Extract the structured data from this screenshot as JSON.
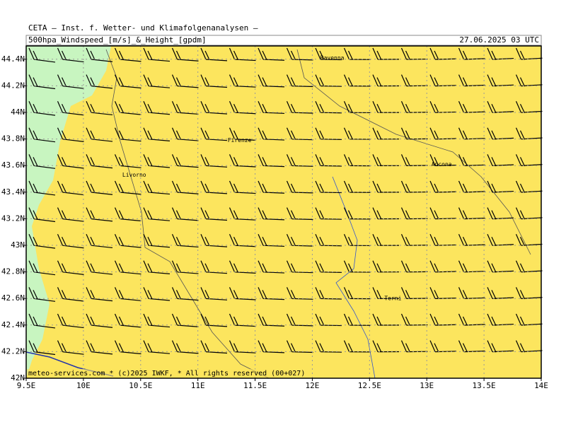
{
  "header": {
    "title": "CETA — Inst. f. Wetter- und Klimafolgenanalysen —",
    "product": "500hpa_Windspeed_[m/s]_&_Height_[gpdm]",
    "valid_time": "27.06.2025 03 UTC"
  },
  "map": {
    "xlim": [
      9.5,
      14
    ],
    "ylim": [
      42,
      44.5
    ],
    "xticks": [
      {
        "value": 9.5,
        "label": "9.5E"
      },
      {
        "value": 10,
        "label": "10E"
      },
      {
        "value": 10.5,
        "label": "10.5E"
      },
      {
        "value": 11,
        "label": "11E"
      },
      {
        "value": 11.5,
        "label": "11.5E"
      },
      {
        "value": 12,
        "label": "12E"
      },
      {
        "value": 12.5,
        "label": "12.5E"
      },
      {
        "value": 13,
        "label": "13E"
      },
      {
        "value": 13.5,
        "label": "13.5E"
      },
      {
        "value": 14,
        "label": "14E"
      }
    ],
    "yticks": [
      {
        "value": 42,
        "label": "42N"
      },
      {
        "value": 42.2,
        "label": "42.2N"
      },
      {
        "value": 42.4,
        "label": "42.4N"
      },
      {
        "value": 42.6,
        "label": "42.6N"
      },
      {
        "value": 42.8,
        "label": "42.8N"
      },
      {
        "value": 43,
        "label": "43N"
      },
      {
        "value": 43.2,
        "label": "43.2N"
      },
      {
        "value": 43.4,
        "label": "43.4N"
      },
      {
        "value": 43.6,
        "label": "43.6N"
      },
      {
        "value": 43.8,
        "label": "43.8N"
      },
      {
        "value": 44,
        "label": "44N"
      },
      {
        "value": 44.2,
        "label": "44.2N"
      },
      {
        "value": 44.4,
        "label": "44.4N"
      }
    ],
    "cities": [
      {
        "name": "Ravenna",
        "lon": 12.07,
        "lat": 44.41
      },
      {
        "name": "Firenze",
        "lon": 11.26,
        "lat": 43.79
      },
      {
        "name": "Livorno",
        "lon": 10.34,
        "lat": 43.53
      },
      {
        "name": "Ancona",
        "lon": 13.04,
        "lat": 43.61
      },
      {
        "name": "Terni",
        "lon": 12.63,
        "lat": 42.6
      }
    ],
    "footer": "meteo-services.com * (c)2025 IWKF, * All rights reserved (00+027)"
  }
}
